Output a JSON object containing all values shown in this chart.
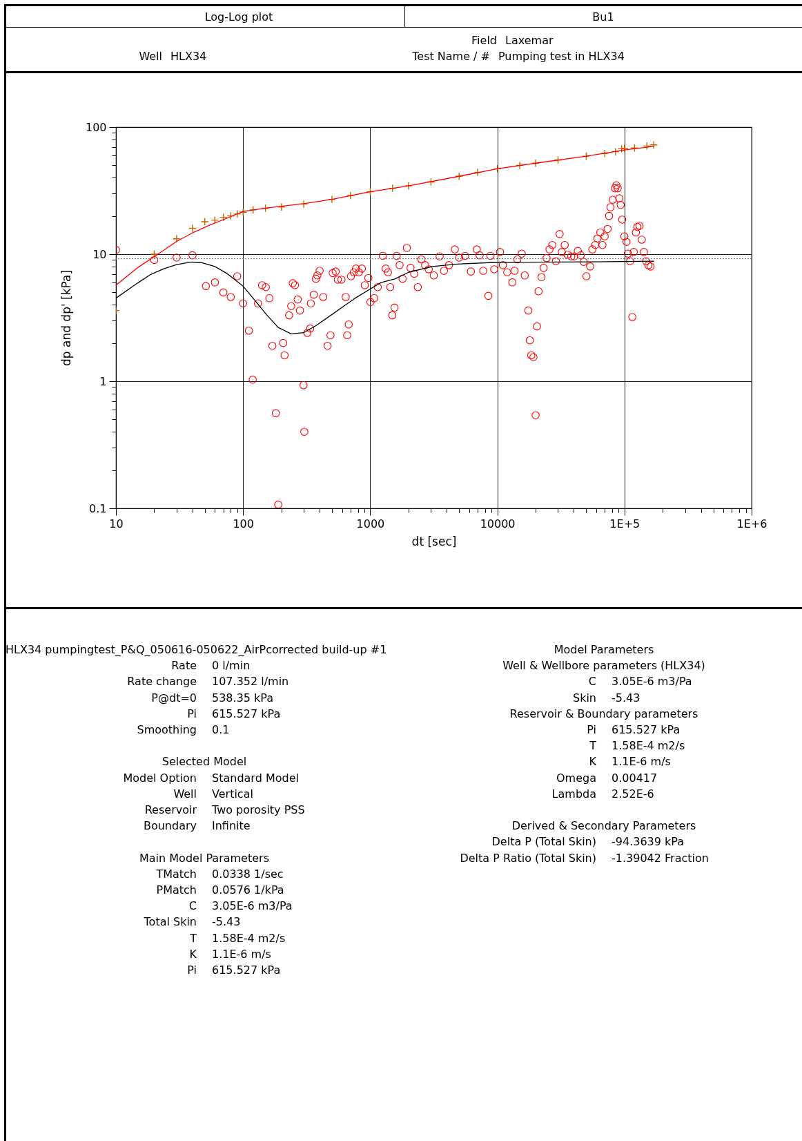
{
  "chart_data": {
    "type": "scatter",
    "title": "Log-Log plot",
    "xlabel": "dt [sec]",
    "ylabel": "dp and dp'  [kPa]",
    "log": "xy",
    "grid": true,
    "xlim": [
      10,
      1000000
    ],
    "ylim": [
      0.1,
      100
    ],
    "xticks": [
      10,
      {
        "value": 20,
        "label": null
      },
      {
        "value": 30,
        "label": null
      },
      {
        "value": 40,
        "label": null
      },
      {
        "value": 50,
        "label": null
      },
      {
        "value": 60,
        "label": null
      },
      {
        "value": 70,
        "label": null
      },
      {
        "value": 80,
        "label": null
      },
      {
        "value": 90,
        "label": null
      },
      100,
      {
        "value": 200,
        "label": null
      },
      {
        "value": 300,
        "label": null
      },
      {
        "value": 400,
        "label": null
      },
      {
        "value": 500,
        "label": null
      },
      {
        "value": 600,
        "label": null
      },
      {
        "value": 700,
        "label": null
      },
      {
        "value": 800,
        "label": null
      },
      {
        "value": 900,
        "label": null
      },
      1000,
      {
        "value": 2000,
        "label": null
      },
      {
        "value": 3000,
        "label": null
      },
      {
        "value": 4000,
        "label": null
      },
      {
        "value": 5000,
        "label": null
      },
      {
        "value": 6000,
        "label": null
      },
      {
        "value": 7000,
        "label": null
      },
      {
        "value": 8000,
        "label": null
      },
      {
        "value": 9000,
        "label": null
      },
      10000,
      {
        "value": 20000,
        "label": null
      },
      {
        "value": 30000,
        "label": null
      },
      {
        "value": 40000,
        "label": null
      },
      {
        "value": 50000,
        "label": null
      },
      {
        "value": 60000,
        "label": null
      },
      {
        "value": 70000,
        "label": null
      },
      {
        "value": 80000,
        "label": null
      },
      {
        "value": 90000,
        "label": null
      },
      {
        "value": 100000,
        "label": "1E+5"
      },
      {
        "value": 200000,
        "label": null
      },
      {
        "value": 300000,
        "label": null
      },
      {
        "value": 400000,
        "label": null
      },
      {
        "value": 500000,
        "label": null
      },
      {
        "value": 600000,
        "label": null
      },
      {
        "value": 700000,
        "label": null
      },
      {
        "value": 800000,
        "label": null
      },
      {
        "value": 900000,
        "label": null
      },
      {
        "value": 1000000,
        "label": "1E+6"
      }
    ],
    "yticks": [
      0.1,
      {
        "value": 0.2,
        "label": null
      },
      {
        "value": 0.3,
        "label": null
      },
      {
        "value": 0.4,
        "label": null
      },
      {
        "value": 0.5,
        "label": null
      },
      {
        "value": 0.6,
        "label": null
      },
      {
        "value": 0.7,
        "label": null
      },
      {
        "value": 0.8,
        "label": null
      },
      {
        "value": 0.9,
        "label": null
      },
      1,
      {
        "value": 2,
        "label": null
      },
      {
        "value": 3,
        "label": null
      },
      {
        "value": 4,
        "label": null
      },
      {
        "value": 5,
        "label": null
      },
      {
        "value": 6,
        "label": null
      },
      {
        "value": 7,
        "label": null
      },
      {
        "value": 8,
        "label": null
      },
      {
        "value": 9,
        "label": null
      },
      10,
      {
        "value": 20,
        "label": null
      },
      {
        "value": 30,
        "label": null
      },
      {
        "value": 40,
        "label": null
      },
      {
        "value": 50,
        "label": null
      },
      {
        "value": 60,
        "label": null
      },
      {
        "value": 70,
        "label": null
      },
      {
        "value": 80,
        "label": null
      },
      {
        "value": 90,
        "label": null
      },
      100
    ],
    "ref_lines": [
      {
        "axis": "y",
        "value": 9.2,
        "color": "#808080",
        "line_style": "dotted"
      }
    ],
    "series": [
      {
        "type": "scatter",
        "marker": "cross",
        "color": "#c86400",
        "x": [
          10,
          20,
          30,
          40,
          50,
          60,
          70,
          80,
          90,
          100,
          120,
          150,
          200,
          300,
          500,
          700,
          1000,
          1500,
          2000,
          3000,
          5000,
          7000,
          10000,
          15000,
          20000,
          30000,
          50000,
          70000,
          85000,
          95000,
          100000,
          120000,
          150000,
          170000
        ],
        "values": [
          3.6,
          10,
          13.2,
          16,
          18,
          18.5,
          19.5,
          20,
          20.7,
          21.4,
          22.3,
          23,
          23.5,
          24.8,
          27,
          29,
          31,
          33,
          34.5,
          37,
          41,
          44,
          47,
          50,
          52,
          55,
          59,
          62,
          64,
          67.5,
          68,
          68.5,
          71,
          72.5
        ]
      },
      {
        "type": "line",
        "color": "#ff0000",
        "x": [
          10,
          15,
          22,
          30,
          40,
          55,
          70,
          100,
          150,
          200,
          300,
          500,
          1000,
          2000,
          5000,
          10000,
          20000,
          50000,
          100000,
          170000
        ],
        "values": [
          5.7,
          7.9,
          10.2,
          12.6,
          14.7,
          17,
          18.7,
          21.7,
          23,
          23.8,
          25,
          27,
          31,
          34.5,
          41,
          47,
          52,
          59,
          66,
          70.5
        ]
      },
      {
        "type": "scatter",
        "marker": "circle",
        "color": "#ff0000",
        "x": [
          10,
          20,
          30,
          40,
          51,
          60,
          70,
          80,
          90,
          100,
          111,
          119,
          131,
          141,
          151,
          161,
          170,
          181,
          189,
          207,
          212,
          230,
          239,
          246,
          256,
          269,
          280,
          299,
          303,
          320,
          337,
          341,
          360,
          374,
          384,
          400,
          427,
          462,
          487,
          507,
          535,
          556,
          594,
          642,
          659,
          677,
          705,
          743,
          773,
          815,
          859,
          906,
          967,
          1005,
          1074,
          1146,
          1257,
          1325,
          1380,
          1436,
          1493,
          1553,
          1616,
          1703,
          1796,
          1942,
          2075,
          2218,
          2367,
          2531,
          2701,
          2884,
          3163,
          3516,
          3803,
          4170,
          4634,
          5012,
          5572,
          6194,
          6886,
          7250,
          7745,
          8492,
          8831,
          9441,
          10490,
          11050,
          11960,
          13120,
          13650,
          14390,
          15560,
          16410,
          17540,
          18000,
          18480,
          19230,
          20000,
          20510,
          21080,
          22230,
          23120,
          24380,
          25700,
          27040,
          28910,
          30900,
          32140,
          33880,
          35730,
          38110,
          40180,
          42950,
          45290,
          47750,
          50230,
          53700,
          55850,
          58880,
          61240,
          64570,
          67140,
          69820,
          73620,
          75680,
          77620,
          80910,
          84140,
          86300,
          88510,
          90990,
          93330,
          95940,
          99770,
          103700,
          106400,
          110700,
          115300,
          118300,
          123000,
          126200,
          131500,
          136800,
          142200,
          147900,
          154200,
          160300
        ],
        "values": [
          10.8,
          9.0,
          9.4,
          9.8,
          5.6,
          6.0,
          5.0,
          4.6,
          6.7,
          4.1,
          2.5,
          1.03,
          4.1,
          5.7,
          5.5,
          4.5,
          1.9,
          0.56,
          0.107,
          2.0,
          1.6,
          3.3,
          3.9,
          5.9,
          5.7,
          4.4,
          3.6,
          0.93,
          0.4,
          2.4,
          2.6,
          4.1,
          4.8,
          6.4,
          6.8,
          7.4,
          4.6,
          1.9,
          2.3,
          7.1,
          7.3,
          6.3,
          6.3,
          4.6,
          2.3,
          2.8,
          6.7,
          7.2,
          7.7,
          7.2,
          7.7,
          5.7,
          6.5,
          4.2,
          4.5,
          5.5,
          9.7,
          7.7,
          7.2,
          5.5,
          3.3,
          3.8,
          9.7,
          8.2,
          6.4,
          11.2,
          7.8,
          7.0,
          5.5,
          9.1,
          8.2,
          7.6,
          6.8,
          9.6,
          7.4,
          8.2,
          10.9,
          9.4,
          9.7,
          7.3,
          10.9,
          9.8,
          7.4,
          4.7,
          9.7,
          7.6,
          10.4,
          8.2,
          7.2,
          6.0,
          7.4,
          9.1,
          10.1,
          6.8,
          3.6,
          2.1,
          1.6,
          1.55,
          0.54,
          2.7,
          5.1,
          6.6,
          7.8,
          9.3,
          10.9,
          11.8,
          8.8,
          14.4,
          10.4,
          11.8,
          9.9,
          9.6,
          9.6,
          10.6,
          9.8,
          8.7,
          6.7,
          8.0,
          10.9,
          11.8,
          13.3,
          14.8,
          11.8,
          13.8,
          15.8,
          20,
          23.4,
          26.8,
          33,
          34.8,
          33,
          27.5,
          24.4,
          18.7,
          13.8,
          12.5,
          10.1,
          8.8,
          3.2,
          10.4,
          14.8,
          16.4,
          16.7,
          13,
          10.4,
          8.8,
          8.2,
          8.0
        ]
      },
      {
        "type": "line",
        "color": "#000000",
        "x": [
          10,
          15,
          18.8,
          24,
          30,
          39,
          48,
          60,
          75,
          100,
          125,
          153,
          189,
          239,
          299,
          372,
          498,
          622,
          778,
          973,
          1216,
          1578,
          2000,
          3076,
          4809,
          10000,
          56000,
          170000
        ],
        "values": [
          4.51,
          5.98,
          6.93,
          7.71,
          8.28,
          8.67,
          8.55,
          8.0,
          7.03,
          5.6,
          4.28,
          3.34,
          2.65,
          2.36,
          2.41,
          2.73,
          3.34,
          3.91,
          4.57,
          5.23,
          5.98,
          6.4,
          7.2,
          8.0,
          8.36,
          8.63,
          8.71,
          8.8
        ]
      }
    ],
    "annotations": [
      "Bu1",
      "Well",
      "HLX34",
      "Field",
      "Laxemar",
      "Test Name / #",
      "Pumping test in HLX34",
      "HLX34 pumpingtest_P&Q_050616-050622_AirPcorrected build-up #1",
      "Rate",
      "0 l/min",
      "Rate change",
      "107.352 l/min",
      "P@dt=0",
      "538.35 kPa",
      "Pi",
      "615.527 kPa",
      "Smoothing",
      "0.1",
      "Selected Model",
      "Model Option",
      "Standard Model",
      "Well",
      "Vertical",
      "Reservoir",
      "Two porosity PSS",
      "Boundary",
      "Infinite",
      "Main Model Parameters",
      "TMatch",
      "0.0338 1/sec",
      "PMatch",
      "0.0576 1/kPa",
      "C",
      "3.05E-6 m3/Pa",
      "Total Skin",
      "-5.43",
      "T",
      "1.58E-4 m2/s",
      "K",
      "1.1E-6 m/s",
      "Pi",
      "615.527 kPa",
      "Model Parameters",
      "Well & Wellbore parameters (HLX34)",
      "C",
      "3.05E-6 m3/Pa",
      "Skin",
      "-5.43",
      "Reservoir & Boundary parameters",
      "Pi",
      "615.527 kPa",
      "T",
      "1.58E-4 m2/s",
      "K",
      "1.1E-6 m/s",
      "Omega",
      "0.00417",
      "Lambda",
      "2.52E-6",
      "Derived & Secondary Parameters",
      "Delta P (Total Skin)",
      "-94.3639 kPa",
      "Delta P Ratio (Total Skin)",
      "-1.39042 Fraction"
    ]
  }
}
